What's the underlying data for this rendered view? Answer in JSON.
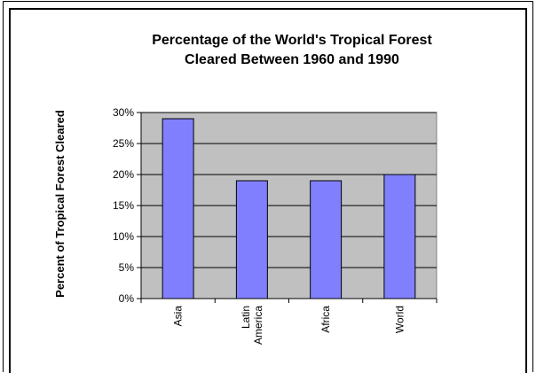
{
  "chart_data": {
    "type": "bar",
    "title_lines": [
      "Percentage of the World's Tropical Forest",
      "Cleared Between 1960 and 1990"
    ],
    "xlabel": "",
    "ylabel": "Percent of Tropical Forest Cleared",
    "categories": [
      [
        "Asia"
      ],
      [
        "Latin",
        "America"
      ],
      [
        "Africa"
      ],
      [
        "World"
      ]
    ],
    "values": [
      0.29,
      0.19,
      0.19,
      0.2
    ],
    "ylim": [
      0,
      0.3
    ],
    "yticks": [
      {
        "value": 0.3,
        "label": "30%"
      },
      {
        "value": 0.25,
        "label": "25%"
      },
      {
        "value": 0.2,
        "label": "20%"
      },
      {
        "value": 0.15,
        "label": "15%"
      },
      {
        "value": 0.1,
        "label": "10%"
      },
      {
        "value": 0.05,
        "label": "5%"
      },
      {
        "value": 0.0,
        "label": "0%"
      }
    ],
    "grid": true,
    "colors": {
      "bar": "#8080ff",
      "plot_background": "#c0c0c0",
      "gridline": "#000000",
      "border": "#808080"
    }
  }
}
